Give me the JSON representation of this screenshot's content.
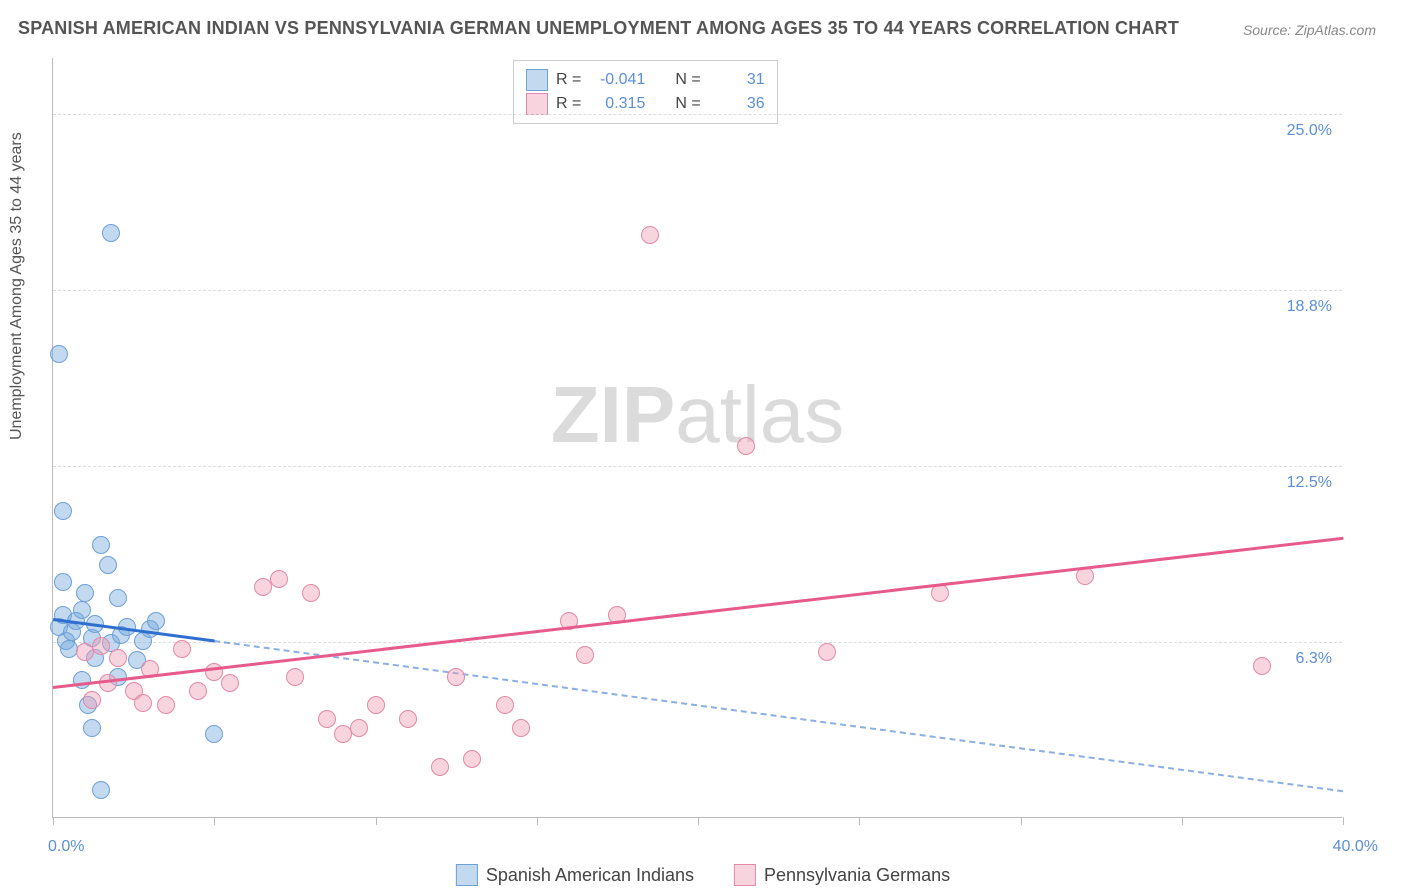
{
  "title": "SPANISH AMERICAN INDIAN VS PENNSYLVANIA GERMAN UNEMPLOYMENT AMONG AGES 35 TO 44 YEARS CORRELATION CHART",
  "source": "Source: ZipAtlas.com",
  "watermark": "ZIPatlas",
  "chart": {
    "type": "scatter",
    "ylabel": "Unemployment Among Ages 35 to 44 years",
    "xlim": [
      0,
      40
    ],
    "ylim": [
      0,
      27
    ],
    "xtick_positions": [
      0,
      5,
      10,
      15,
      20,
      25,
      30,
      35,
      40
    ],
    "xtick_labels": {
      "0": "0.0%",
      "40": "40.0%"
    },
    "ytick_positions": [
      6.25,
      12.5,
      18.75,
      25.0
    ],
    "ytick_labels": [
      "6.3%",
      "12.5%",
      "18.8%",
      "25.0%"
    ],
    "background_color": "#ffffff",
    "grid_color": "#dddddd",
    "axis_color": "#bbbbbb",
    "label_fontsize": 16,
    "title_fontsize": 18,
    "title_color": "#555555",
    "tick_label_color": "#5b8fd6",
    "marker_radius": 9,
    "marker_opacity": 0.6,
    "series": [
      {
        "name": "Spanish American Indians",
        "color_fill": "rgba(120,170,220,0.45)",
        "color_stroke": "#6fa0d6",
        "trend_color": "#2e6fd0",
        "trend_style_solid_until_x": 5.0,
        "r": "-0.041",
        "n": "31",
        "trend": {
          "x1": 0,
          "y1": 7.1,
          "x2": 40,
          "y2": 1.0
        },
        "points": [
          [
            0.2,
            16.5
          ],
          [
            1.8,
            20.8
          ],
          [
            0.3,
            10.9
          ],
          [
            0.2,
            6.8
          ],
          [
            0.3,
            7.2
          ],
          [
            0.4,
            6.3
          ],
          [
            0.5,
            6.0
          ],
          [
            0.6,
            6.6
          ],
          [
            0.7,
            7.0
          ],
          [
            0.9,
            7.4
          ],
          [
            1.0,
            8.0
          ],
          [
            1.2,
            6.4
          ],
          [
            1.3,
            5.7
          ],
          [
            1.3,
            6.9
          ],
          [
            1.5,
            9.7
          ],
          [
            1.7,
            9.0
          ],
          [
            1.8,
            6.2
          ],
          [
            2.0,
            7.8
          ],
          [
            2.1,
            6.5
          ],
          [
            2.3,
            6.8
          ],
          [
            2.6,
            5.6
          ],
          [
            2.8,
            6.3
          ],
          [
            3.0,
            6.7
          ],
          [
            3.2,
            7.0
          ],
          [
            1.1,
            4.0
          ],
          [
            1.2,
            3.2
          ],
          [
            0.9,
            4.9
          ],
          [
            1.5,
            1.0
          ],
          [
            2.0,
            5.0
          ],
          [
            5.0,
            3.0
          ],
          [
            0.3,
            8.4
          ]
        ]
      },
      {
        "name": "Pennsylvania Germans",
        "color_fill": "rgba(240,160,185,0.45)",
        "color_stroke": "#e389a8",
        "trend_color": "#e75a8c",
        "trend_style_solid_until_x": 40,
        "r": "0.315",
        "n": "36",
        "trend": {
          "x1": 0,
          "y1": 4.7,
          "x2": 40,
          "y2": 10.0
        },
        "points": [
          [
            18.5,
            20.7
          ],
          [
            21.5,
            13.2
          ],
          [
            1.0,
            5.9
          ],
          [
            1.5,
            6.1
          ],
          [
            1.2,
            4.2
          ],
          [
            2.0,
            5.7
          ],
          [
            2.5,
            4.5
          ],
          [
            2.8,
            4.1
          ],
          [
            3.0,
            5.3
          ],
          [
            3.5,
            4.0
          ],
          [
            4.0,
            6.0
          ],
          [
            4.5,
            4.5
          ],
          [
            5.0,
            5.2
          ],
          [
            5.5,
            4.8
          ],
          [
            6.5,
            8.2
          ],
          [
            7.0,
            8.5
          ],
          [
            7.5,
            5.0
          ],
          [
            8.0,
            8.0
          ],
          [
            8.5,
            3.5
          ],
          [
            9.0,
            3.0
          ],
          [
            9.5,
            3.2
          ],
          [
            10.0,
            4.0
          ],
          [
            11.0,
            3.5
          ],
          [
            12.0,
            1.8
          ],
          [
            12.5,
            5.0
          ],
          [
            13.0,
            2.1
          ],
          [
            14.0,
            4.0
          ],
          [
            14.5,
            3.2
          ],
          [
            16.0,
            7.0
          ],
          [
            16.5,
            5.8
          ],
          [
            17.5,
            7.2
          ],
          [
            24.0,
            5.9
          ],
          [
            27.5,
            8.0
          ],
          [
            32.0,
            8.6
          ],
          [
            37.5,
            5.4
          ],
          [
            1.7,
            4.8
          ]
        ]
      }
    ]
  },
  "legend_top": {
    "rows": [
      {
        "swatch_idx": 0,
        "r_label": "R =",
        "n_label": "N ="
      },
      {
        "swatch_idx": 1,
        "r_label": "R =",
        "n_label": "N ="
      }
    ]
  }
}
